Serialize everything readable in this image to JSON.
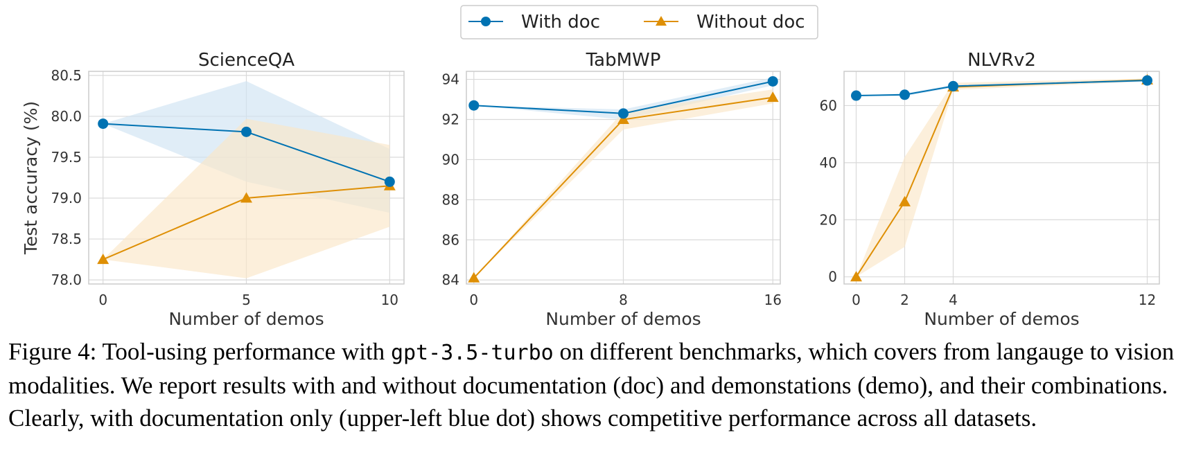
{
  "legend": {
    "with_doc": "With doc",
    "without_doc": "Without doc"
  },
  "colors": {
    "with_doc": "#0072b2",
    "without_doc": "#de8f05",
    "with_doc_band": "#cfe3f3",
    "without_doc_band": "#fbe6c8",
    "grid": "#d9d9d9",
    "frame": "#cccccc"
  },
  "chart_data": [
    {
      "type": "line",
      "title": "ScienceQA",
      "xlabel": "Number of demos",
      "ylabel": "Test accuracy (%)",
      "x": [
        0,
        5,
        10
      ],
      "xticks": [
        "0",
        "5",
        "10"
      ],
      "xlim": [
        -0.5,
        10.5
      ],
      "yticks": [
        "78.0",
        "78.5",
        "79.0",
        "79.5",
        "80.0",
        "80.5"
      ],
      "ylim": [
        77.95,
        80.55
      ],
      "grid": true,
      "series": [
        {
          "name": "With doc",
          "values": [
            79.91,
            79.81,
            79.2
          ],
          "band_low": [
            79.91,
            79.2,
            78.82
          ],
          "band_high": [
            79.91,
            80.43,
            79.6
          ],
          "marker": "circle"
        },
        {
          "name": "Without doc",
          "values": [
            78.25,
            79.0,
            79.15
          ],
          "band_low": [
            78.25,
            78.02,
            78.65
          ],
          "band_high": [
            78.25,
            79.97,
            79.65
          ],
          "marker": "triangle"
        }
      ]
    },
    {
      "type": "line",
      "title": "TabMWP",
      "xlabel": "Number of demos",
      "ylabel": "",
      "x": [
        0,
        8,
        16
      ],
      "xticks": [
        "0",
        "8",
        "16"
      ],
      "xlim": [
        -0.4,
        16.4
      ],
      "yticks": [
        "84",
        "86",
        "88",
        "90",
        "92",
        "94"
      ],
      "ylim": [
        83.8,
        94.4
      ],
      "grid": true,
      "series": [
        {
          "name": "With doc",
          "values": [
            92.7,
            92.3,
            93.9
          ],
          "band_low": [
            92.7,
            92.0,
            93.7
          ],
          "band_high": [
            92.7,
            92.5,
            94.1
          ],
          "marker": "circle"
        },
        {
          "name": "Without doc",
          "values": [
            84.1,
            92.0,
            93.1
          ],
          "band_low": [
            84.1,
            91.5,
            92.8
          ],
          "band_high": [
            84.1,
            92.4,
            93.5
          ],
          "marker": "triangle"
        }
      ]
    },
    {
      "type": "line",
      "title": "NLVRv2",
      "xlabel": "Number of demos",
      "ylabel": "",
      "x": [
        0,
        2,
        4,
        12
      ],
      "xticks": [
        "0",
        "2",
        "4",
        "12"
      ],
      "xlim": [
        -0.5,
        12.5
      ],
      "yticks": [
        "0",
        "20",
        "40",
        "60"
      ],
      "ylim": [
        -2.5,
        72
      ],
      "grid": true,
      "series": [
        {
          "name": "With doc",
          "values": [
            63.5,
            63.8,
            66.8,
            68.8
          ],
          "band_low": [
            63.5,
            63.3,
            66.3,
            68.3
          ],
          "band_high": [
            63.5,
            64.3,
            67.3,
            69.3
          ],
          "marker": "circle"
        },
        {
          "name": "Without doc",
          "values": [
            0,
            26.3,
            66.5,
            69.0
          ],
          "band_low": [
            0,
            10.5,
            65.5,
            68.5
          ],
          "band_high": [
            0,
            42.0,
            68.0,
            69.5
          ],
          "marker": "triangle"
        }
      ]
    }
  ],
  "caption": {
    "prefix": "Figure 4: Tool-using performance with ",
    "code": "gpt-3.5-turbo",
    "rest": " on different benchmarks, which covers from langauge to vision modalities. We report results with and without documentation (doc) and demonstations (demo), and their combinations. Clearly, with documentation only (upper-left blue dot) shows competitive performance across all datasets."
  }
}
